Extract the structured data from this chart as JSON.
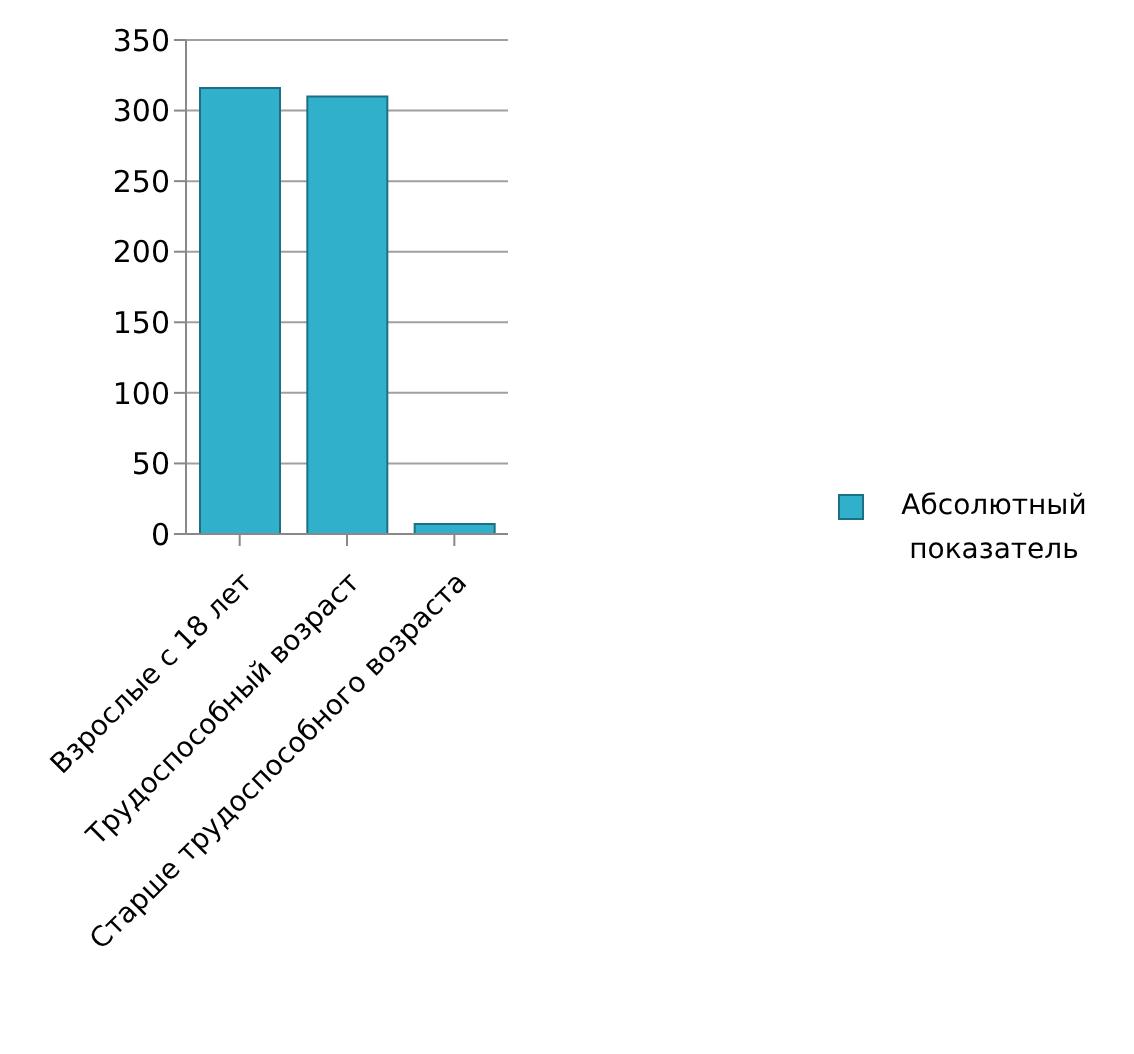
{
  "chart_data": {
    "type": "bar",
    "categories": [
      "Взрослые с 18 лет",
      "Трудоспособный возраст",
      "Старше трудоспособного возраста"
    ],
    "series": [
      {
        "name": "Абсолютный показатель",
        "color": "#31b0cc",
        "values": [
          316,
          310,
          7
        ]
      }
    ],
    "ylim": [
      0,
      350
    ],
    "yticks": [
      0,
      50,
      100,
      150,
      200,
      250,
      300,
      350
    ],
    "grid": "y",
    "legend": "right"
  }
}
